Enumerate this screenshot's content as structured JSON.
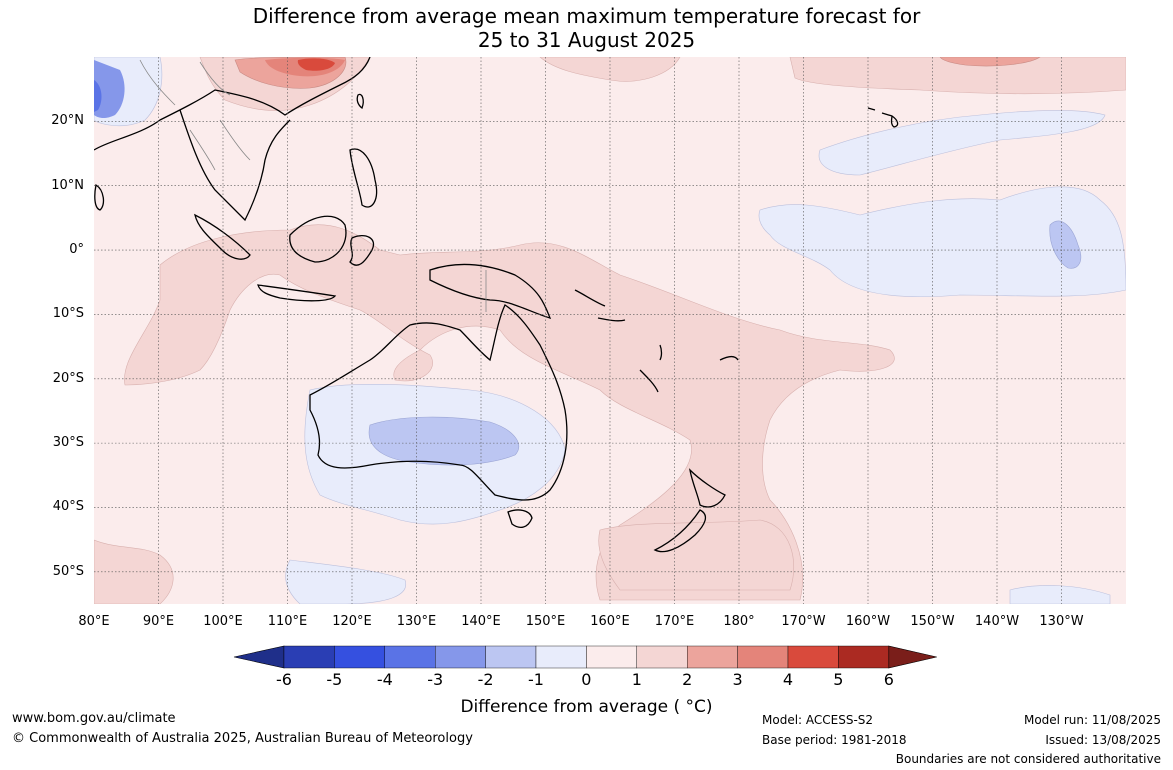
{
  "title": {
    "line1": "Difference from average mean maximum temperature forecast for",
    "line2": "25 to 31 August 2025"
  },
  "map": {
    "lat_labels": [
      "20°N",
      "10°N",
      "0°",
      "10°S",
      "20°S",
      "30°S",
      "40°S",
      "50°S"
    ],
    "lon_labels": [
      "80°E",
      "90°E",
      "100°E",
      "110°E",
      "120°E",
      "130°E",
      "140°E",
      "150°E",
      "160°E",
      "170°E",
      "180°",
      "170°W",
      "160°W",
      "150°W",
      "140°W",
      "130°W"
    ],
    "lat_range": [
      -55,
      30
    ],
    "lon_range": [
      80,
      240
    ]
  },
  "legend": {
    "ticks": [
      "-6",
      "-5",
      "-4",
      "-3",
      "-2",
      "-1",
      "0",
      "1",
      "2",
      "3",
      "4",
      "5",
      "6"
    ],
    "label": "Difference from average ( °C)",
    "colors": [
      "#1f2f8a",
      "#2a3eb4",
      "#3550e0",
      "#5a73e6",
      "#8597ea",
      "#bcc6f2",
      "#e8ecfb",
      "#fbecec",
      "#f4d6d4",
      "#eca49c",
      "#e4847a",
      "#d94a3c",
      "#ab2a22",
      "#7a1e1a"
    ]
  },
  "footer": {
    "website": "www.bom.gov.au/climate",
    "copyright": "© Commonwealth of Australia 2025, Australian Bureau of Meteorology",
    "model": "Model: ACCESS-S2",
    "base_period": "Base period: 1981-2018",
    "model_run": "Model run: 11/08/2025",
    "issued": "Issued: 13/08/2025",
    "disclaimer": "Boundaries are not considered authoritative"
  }
}
